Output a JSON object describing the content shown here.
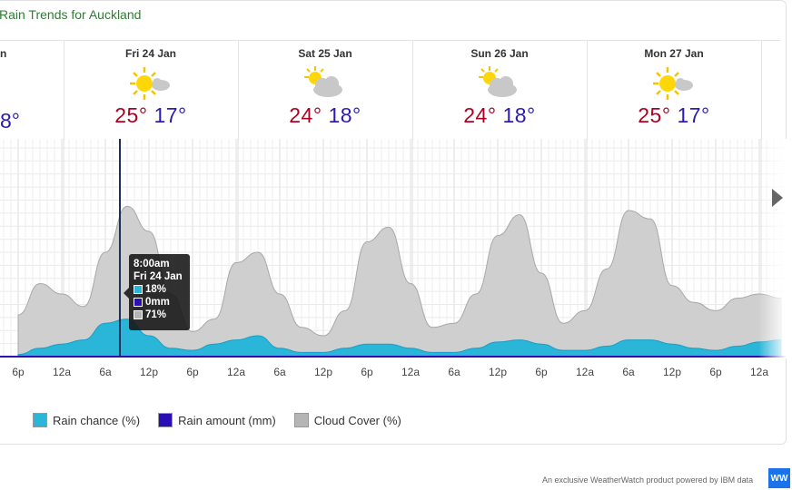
{
  "title": "Rain Trends for Auckland",
  "days": [
    {
      "name": "Fri 24 Jan",
      "max": "25°",
      "min": "17°",
      "icon": "sun-mostly-icon"
    },
    {
      "name": "Sat 25 Jan",
      "max": "24°",
      "min": "18°",
      "icon": "cloud-sun-icon"
    },
    {
      "name": "Sun 26 Jan",
      "max": "24°",
      "min": "18°",
      "icon": "cloud-sun-icon"
    },
    {
      "name": "Mon 27 Jan",
      "max": "25°",
      "min": "17°",
      "icon": "sun-mostly-icon"
    }
  ],
  "partial_day": {
    "name": "n",
    "min": "8°"
  },
  "tooltip": {
    "time": "8:00am",
    "date": "Fri 24 Jan",
    "rain_chance": "18%",
    "rain_amount": "0mm",
    "cloud_cover": "71%"
  },
  "legend": [
    {
      "label": "Rain chance (%)",
      "color": "#29b6d8"
    },
    {
      "label": "Rain amount (mm)",
      "color": "#2a0fb5"
    },
    {
      "label": "Cloud Cover (%)",
      "color": "#b5b5b5"
    }
  ],
  "footer": "An exclusive WeatherWatch product powered by IBM data",
  "logo_text": "WW",
  "chart_data": {
    "type": "area",
    "x_ticks": [
      "6p",
      "12a",
      "6a",
      "12p",
      "6p",
      "12a",
      "6a",
      "12p",
      "6p",
      "12a",
      "6a",
      "12p",
      "6p",
      "12a",
      "6a",
      "12p",
      "6p",
      "12a"
    ],
    "ylim": [
      0,
      100
    ],
    "grid": true,
    "legend_position": "bottom",
    "x_hours": [
      0,
      3,
      6,
      9,
      12,
      15,
      18,
      21,
      24,
      27,
      30,
      33,
      36,
      39,
      42,
      45,
      48,
      51,
      54,
      57,
      60,
      63,
      66,
      69,
      72,
      75,
      78,
      81,
      84,
      87,
      90,
      93,
      96,
      99,
      102,
      105
    ],
    "series": [
      {
        "name": "Cloud Cover (%)",
        "color": "#cccccc",
        "values": [
          20,
          35,
          30,
          24,
          50,
          72,
          60,
          30,
          12,
          18,
          45,
          50,
          30,
          14,
          10,
          22,
          55,
          62,
          35,
          14,
          16,
          30,
          58,
          68,
          40,
          16,
          22,
          42,
          70,
          66,
          34,
          26,
          22,
          28,
          30,
          28
        ]
      },
      {
        "name": "Rain chance (%)",
        "color": "#29b6d8",
        "values": [
          1,
          4,
          6,
          8,
          16,
          18,
          10,
          4,
          3,
          6,
          8,
          10,
          4,
          2,
          2,
          4,
          6,
          6,
          4,
          2,
          2,
          4,
          7,
          8,
          6,
          3,
          3,
          5,
          8,
          8,
          6,
          4,
          3,
          5,
          7,
          8
        ]
      },
      {
        "name": "Rain amount (mm)",
        "color": "#2a0fb5",
        "values": [
          0,
          0,
          0,
          0,
          0,
          0,
          0,
          0,
          0,
          0,
          0,
          0,
          0,
          0,
          0,
          0,
          0,
          0,
          0,
          0,
          0,
          0,
          0,
          0,
          0,
          0,
          0,
          0,
          0,
          0,
          0,
          0,
          0,
          0,
          0,
          0
        ]
      }
    ],
    "highlight_hour": 14
  }
}
